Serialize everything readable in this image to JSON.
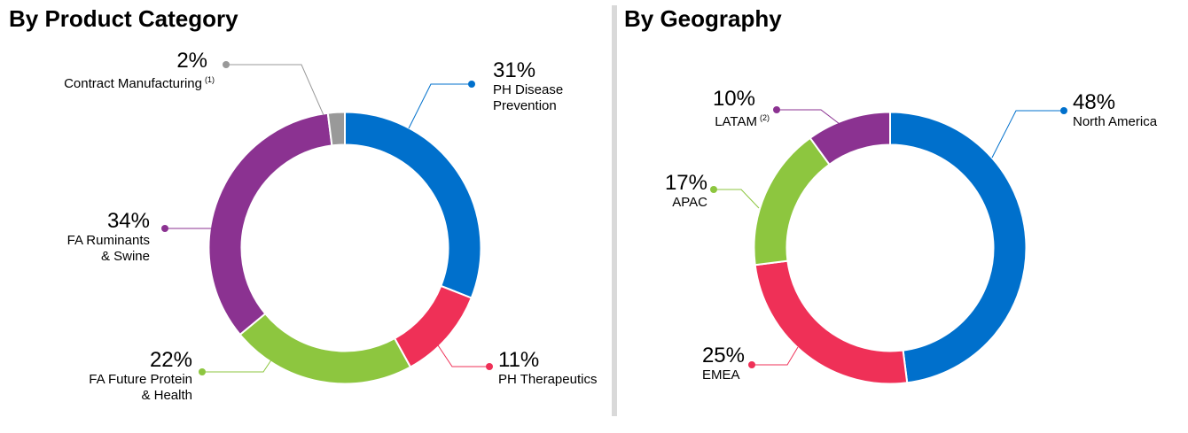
{
  "chart_data": [
    {
      "type": "pie",
      "title": "By Product Category",
      "slices": [
        {
          "name": "PH Disease Prevention",
          "label_lines": [
            "PH Disease",
            "Prevention"
          ],
          "value": 31,
          "pct_label": "31%",
          "color": "#0070cc"
        },
        {
          "name": "PH Therapeutics",
          "label_lines": [
            "PH Therapeutics"
          ],
          "value": 11,
          "pct_label": "11%",
          "color": "#ef3057"
        },
        {
          "name": "FA Future Protein & Health",
          "label_lines": [
            "FA Future Protein",
            "& Health"
          ],
          "value": 22,
          "pct_label": "22%",
          "color": "#8dc63f"
        },
        {
          "name": "FA Ruminants & Swine",
          "label_lines": [
            "FA Ruminants",
            "& Swine"
          ],
          "value": 34,
          "pct_label": "34%",
          "color": "#8b3291"
        },
        {
          "name": "Contract Manufacturing",
          "label_lines": [
            "Contract Manufacturing"
          ],
          "footnote": "(1)",
          "value": 2,
          "pct_label": "2%",
          "color": "#999999"
        }
      ]
    },
    {
      "type": "pie",
      "title": "By Geography",
      "slices": [
        {
          "name": "North America",
          "label_lines": [
            "North America"
          ],
          "value": 48,
          "pct_label": "48%",
          "color": "#0070cc"
        },
        {
          "name": "EMEA",
          "label_lines": [
            "EMEA"
          ],
          "value": 25,
          "pct_label": "25%",
          "color": "#ef3057"
        },
        {
          "name": "APAC",
          "label_lines": [
            "APAC"
          ],
          "value": 17,
          "pct_label": "17%",
          "color": "#8dc63f"
        },
        {
          "name": "LATAM",
          "label_lines": [
            "LATAM"
          ],
          "footnote": "(2)",
          "value": 10,
          "pct_label": "10%",
          "color": "#8b3291"
        }
      ]
    }
  ]
}
